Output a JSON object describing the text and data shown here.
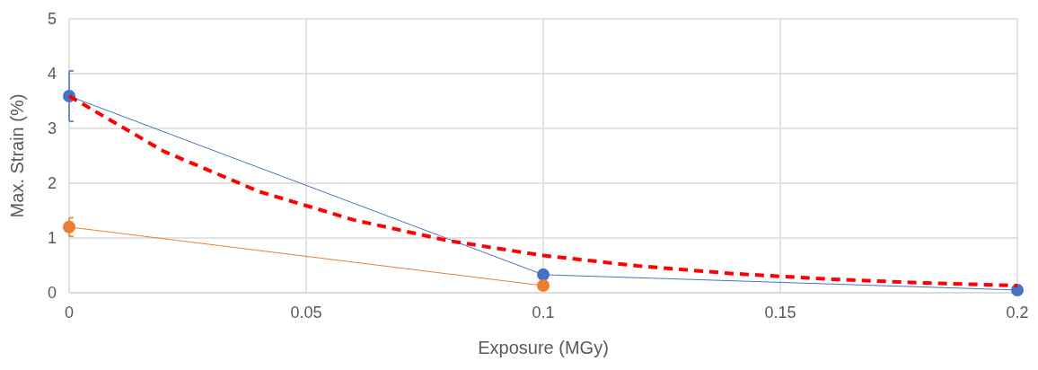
{
  "chart_data": {
    "type": "line",
    "xlabel": "Exposure (MGy)",
    "ylabel": "Max. Strain (%)",
    "xlim": [
      0,
      0.2
    ],
    "xticks": [
      0,
      0.05,
      0.1,
      0.15,
      0.2
    ],
    "ylim": [
      0,
      5
    ],
    "yticks": [
      0,
      1,
      2,
      3,
      4,
      5
    ],
    "grid": true,
    "series": [
      {
        "color": "#4472c4",
        "x": [
          0,
          0.1,
          0.2
        ],
        "values": [
          3.59,
          0.33,
          0.05
        ],
        "errors": [
          0.46,
          null,
          null
        ],
        "marker": "circle",
        "line_style": "solid"
      },
      {
        "color": "#ed7d31",
        "x": [
          0,
          0.1
        ],
        "values": [
          1.2,
          0.13
        ],
        "errors": [
          0.17,
          null
        ],
        "marker": "circle",
        "line_style": "solid"
      },
      {
        "color": "#ff0000",
        "x": [
          0,
          0.02,
          0.04,
          0.06,
          0.08,
          0.1,
          0.12,
          0.14,
          0.16,
          0.18,
          0.2
        ],
        "values": [
          3.59,
          2.58,
          1.85,
          1.33,
          0.95,
          0.68,
          0.49,
          0.35,
          0.25,
          0.18,
          0.13
        ],
        "marker": "none",
        "line_style": "dashed"
      }
    ]
  }
}
